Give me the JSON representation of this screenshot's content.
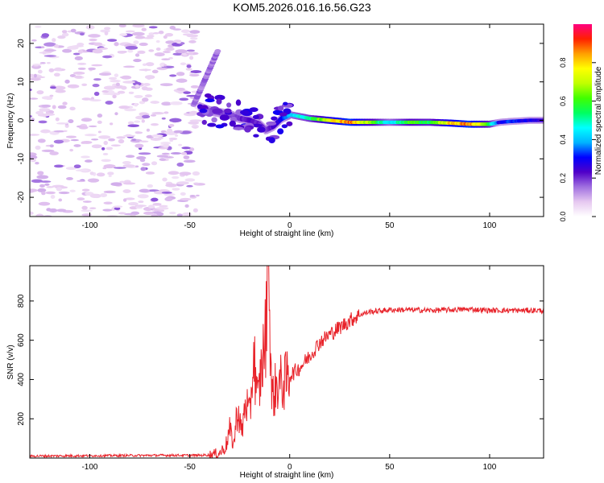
{
  "title": "KOM5.2026.016.16.56.G23",
  "chart_data": [
    {
      "type": "heatmap",
      "xlabel": "Height of straight line (km)",
      "ylabel": "Frequency (Hz)",
      "xlim": [
        -130,
        127
      ],
      "ylim": [
        -25,
        25
      ],
      "xticks": [
        -100,
        -50,
        0,
        50,
        100
      ],
      "yticks": [
        -20,
        -10,
        0,
        10,
        20
      ],
      "colorbar": {
        "label": "Normalized spectral amplitude",
        "ticks": [
          0.0,
          0.2,
          0.4,
          0.6,
          0.8
        ],
        "range": [
          0,
          1
        ],
        "colormap": [
          "#ffffff",
          "#e6c8f0",
          "#a070e0",
          "#5000c8",
          "#0000ff",
          "#00b4ff",
          "#00ffff",
          "#00ff60",
          "#40ff00",
          "#c0ff00",
          "#ffff00",
          "#ffa000",
          "#ff2000",
          "#ff0080"
        ]
      },
      "ridge": {
        "x": [
          -45,
          -40,
          -35,
          -30,
          -25,
          -20,
          -15,
          -12,
          -8,
          -4,
          0,
          5,
          10,
          20,
          30,
          40,
          50,
          60,
          70,
          80,
          90,
          100,
          105,
          110,
          120,
          127
        ],
        "freq": [
          3.5,
          2.5,
          2,
          1.5,
          0.5,
          0,
          -1,
          -2.5,
          -1.5,
          0.5,
          1.5,
          1,
          0.5,
          0,
          -0.5,
          -0.5,
          -0.5,
          -0.5,
          -0.5,
          -0.7,
          -1,
          -1,
          -0.5,
          -0.3,
          0,
          0
        ],
        "amplitude": [
          0.18,
          0.18,
          0.2,
          0.2,
          0.22,
          0.25,
          0.22,
          0.2,
          0.25,
          0.3,
          0.45,
          0.5,
          0.55,
          0.8,
          0.95,
          0.7,
          0.45,
          0.65,
          0.6,
          0.85,
          0.95,
          0.6,
          0.3,
          0.35,
          0.3,
          0.28
        ]
      }
    },
    {
      "type": "line",
      "xlabel": "Height of straight line (km)",
      "ylabel": "SNR (v/v)",
      "xlim": [
        -130,
        127
      ],
      "ylim": [
        0,
        980
      ],
      "xticks": [
        -100,
        -50,
        0,
        50,
        100
      ],
      "yticks": [
        200,
        400,
        600,
        800
      ],
      "series": [
        {
          "name": "SNR",
          "color": "#e8232a",
          "x": [
            -130,
            -100,
            -60,
            -45,
            -40,
            -35,
            -32,
            -30,
            -28,
            -26,
            -24,
            -22,
            -20,
            -18,
            -16,
            -14,
            -12,
            -11,
            -10,
            -9,
            -8,
            -6,
            -4,
            -2,
            0,
            5,
            10,
            15,
            20,
            25,
            30,
            35,
            40,
            50,
            60,
            70,
            80,
            90,
            100,
            110,
            120,
            127
          ],
          "y": [
            10,
            12,
            14,
            14,
            16,
            25,
            60,
            140,
            70,
            260,
            120,
            300,
            200,
            540,
            280,
            470,
            620,
            980,
            780,
            300,
            330,
            380,
            380,
            390,
            420,
            460,
            520,
            590,
            630,
            665,
            700,
            730,
            745,
            755,
            755,
            752,
            755,
            758,
            752,
            752,
            752,
            752
          ]
        }
      ]
    }
  ]
}
